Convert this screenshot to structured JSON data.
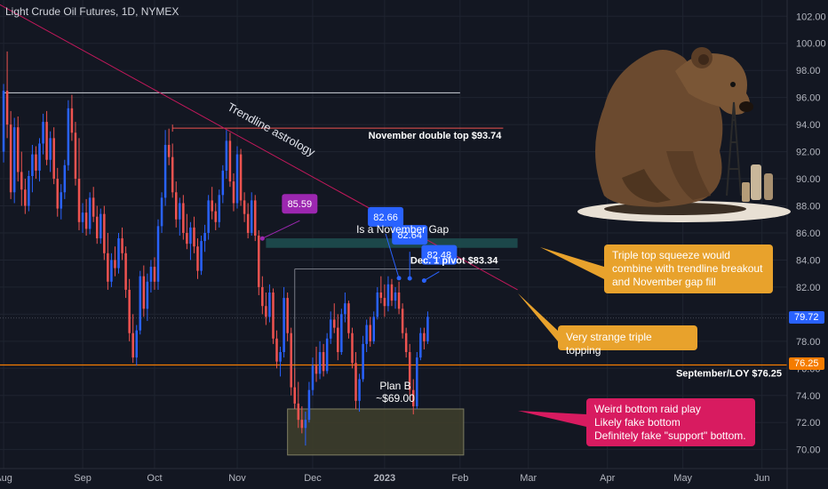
{
  "header": {
    "title": "Light Crude Oil Futures, 1D, NYMEX"
  },
  "chart_data": {
    "type": "candlestick",
    "y_axis": {
      "ticks": [
        70,
        72,
        74,
        76,
        78,
        80,
        82,
        84,
        86,
        88,
        90,
        92,
        94,
        96,
        98,
        100,
        102
      ],
      "ylim": [
        68.6,
        103.2
      ]
    },
    "x_axis": {
      "ticks": [
        {
          "label": "Aug",
          "i": 0
        },
        {
          "label": "Sep",
          "i": 22
        },
        {
          "label": "Oct",
          "i": 42
        },
        {
          "label": "Nov",
          "i": 65
        },
        {
          "label": "Dec",
          "i": 86
        },
        {
          "label": "2023",
          "i": 106
        },
        {
          "label": "Feb",
          "i": 127
        },
        {
          "label": "Mar",
          "i": 146
        },
        {
          "label": "Apr",
          "i": 168
        },
        {
          "label": "May",
          "i": 189
        },
        {
          "label": "Jun",
          "i": 211
        }
      ],
      "xlim": [
        -1,
        218
      ]
    },
    "candles": [
      {
        "o": 92.0,
        "h": 97.0,
        "l": 91.2,
        "c": 96.5
      },
      {
        "o": 96.5,
        "h": 99.4,
        "l": 93.0,
        "c": 94.0
      },
      {
        "o": 94.0,
        "h": 95.0,
        "l": 88.5,
        "c": 89.0
      },
      {
        "o": 89.0,
        "h": 94.5,
        "l": 88.2,
        "c": 93.8
      },
      {
        "o": 93.8,
        "h": 94.6,
        "l": 89.8,
        "c": 90.5
      },
      {
        "o": 90.5,
        "h": 92.0,
        "l": 88.0,
        "c": 89.2
      },
      {
        "o": 89.2,
        "h": 90.0,
        "l": 87.4,
        "c": 88.0
      },
      {
        "o": 88.0,
        "h": 90.6,
        "l": 87.6,
        "c": 90.2
      },
      {
        "o": 90.2,
        "h": 92.5,
        "l": 89.0,
        "c": 91.8
      },
      {
        "o": 91.8,
        "h": 92.4,
        "l": 90.0,
        "c": 90.6
      },
      {
        "o": 90.6,
        "h": 93.0,
        "l": 89.8,
        "c": 92.6
      },
      {
        "o": 92.6,
        "h": 94.8,
        "l": 91.8,
        "c": 94.2
      },
      {
        "o": 94.2,
        "h": 95.0,
        "l": 91.0,
        "c": 91.4
      },
      {
        "o": 91.4,
        "h": 93.5,
        "l": 90.5,
        "c": 93.0
      },
      {
        "o": 93.0,
        "h": 93.8,
        "l": 89.6,
        "c": 90.0
      },
      {
        "o": 90.0,
        "h": 90.8,
        "l": 87.2,
        "c": 87.8
      },
      {
        "o": 87.8,
        "h": 89.6,
        "l": 87.0,
        "c": 89.0
      },
      {
        "o": 89.0,
        "h": 91.4,
        "l": 88.5,
        "c": 91.0
      },
      {
        "o": 91.0,
        "h": 95.8,
        "l": 90.6,
        "c": 95.2
      },
      {
        "o": 95.2,
        "h": 96.2,
        "l": 92.8,
        "c": 93.4
      },
      {
        "o": 93.4,
        "h": 94.2,
        "l": 89.5,
        "c": 90.0
      },
      {
        "o": 90.0,
        "h": 93.0,
        "l": 86.2,
        "c": 86.8
      },
      {
        "o": 86.8,
        "h": 88.2,
        "l": 86.0,
        "c": 87.5
      },
      {
        "o": 87.5,
        "h": 88.5,
        "l": 85.8,
        "c": 86.3
      },
      {
        "o": 86.3,
        "h": 89.0,
        "l": 85.9,
        "c": 88.6
      },
      {
        "o": 88.6,
        "h": 89.4,
        "l": 86.8,
        "c": 87.2
      },
      {
        "o": 87.2,
        "h": 88.0,
        "l": 85.2,
        "c": 85.6
      },
      {
        "o": 85.6,
        "h": 87.8,
        "l": 85.2,
        "c": 87.4
      },
      {
        "o": 87.4,
        "h": 88.0,
        "l": 84.0,
        "c": 84.5
      },
      {
        "o": 84.5,
        "h": 86.0,
        "l": 81.8,
        "c": 82.4
      },
      {
        "o": 82.4,
        "h": 84.5,
        "l": 82.0,
        "c": 84.0
      },
      {
        "o": 84.0,
        "h": 85.0,
        "l": 82.8,
        "c": 83.4
      },
      {
        "o": 83.4,
        "h": 86.0,
        "l": 83.0,
        "c": 85.6
      },
      {
        "o": 85.6,
        "h": 86.4,
        "l": 84.0,
        "c": 84.5
      },
      {
        "o": 84.5,
        "h": 85.0,
        "l": 81.2,
        "c": 81.8
      },
      {
        "o": 81.8,
        "h": 82.6,
        "l": 78.0,
        "c": 78.6
      },
      {
        "o": 78.6,
        "h": 80.0,
        "l": 76.4,
        "c": 76.8
      },
      {
        "o": 76.8,
        "h": 79.2,
        "l": 76.2,
        "c": 78.8
      },
      {
        "o": 78.8,
        "h": 83.2,
        "l": 78.5,
        "c": 82.8
      },
      {
        "o": 82.8,
        "h": 83.6,
        "l": 79.8,
        "c": 80.4
      },
      {
        "o": 80.4,
        "h": 83.0,
        "l": 79.5,
        "c": 82.4
      },
      {
        "o": 82.4,
        "h": 84.0,
        "l": 81.6,
        "c": 83.5
      },
      {
        "o": 83.5,
        "h": 84.2,
        "l": 81.8,
        "c": 82.4
      },
      {
        "o": 82.4,
        "h": 87.0,
        "l": 81.8,
        "c": 86.5
      },
      {
        "o": 86.5,
        "h": 89.0,
        "l": 86.0,
        "c": 88.6
      },
      {
        "o": 88.6,
        "h": 93.6,
        "l": 88.0,
        "c": 92.5
      },
      {
        "o": 92.5,
        "h": 93.7,
        "l": 91.0,
        "c": 91.6
      },
      {
        "o": 91.6,
        "h": 92.6,
        "l": 88.6,
        "c": 89.0
      },
      {
        "o": 89.0,
        "h": 89.8,
        "l": 86.4,
        "c": 87.0
      },
      {
        "o": 87.0,
        "h": 88.6,
        "l": 85.8,
        "c": 88.2
      },
      {
        "o": 88.2,
        "h": 88.8,
        "l": 85.5,
        "c": 86.0
      },
      {
        "o": 86.0,
        "h": 87.4,
        "l": 84.8,
        "c": 85.2
      },
      {
        "o": 85.2,
        "h": 86.8,
        "l": 84.0,
        "c": 86.4
      },
      {
        "o": 86.4,
        "h": 87.2,
        "l": 84.5,
        "c": 85.0
      },
      {
        "o": 85.0,
        "h": 85.6,
        "l": 82.6,
        "c": 83.2
      },
      {
        "o": 83.2,
        "h": 85.8,
        "l": 82.9,
        "c": 85.4
      },
      {
        "o": 85.4,
        "h": 86.6,
        "l": 84.6,
        "c": 86.0
      },
      {
        "o": 86.0,
        "h": 88.8,
        "l": 85.5,
        "c": 88.4
      },
      {
        "o": 88.4,
        "h": 89.4,
        "l": 87.0,
        "c": 87.6
      },
      {
        "o": 87.6,
        "h": 88.2,
        "l": 86.2,
        "c": 86.8
      },
      {
        "o": 86.8,
        "h": 89.2,
        "l": 86.4,
        "c": 88.8
      },
      {
        "o": 88.8,
        "h": 91.0,
        "l": 88.2,
        "c": 90.6
      },
      {
        "o": 90.6,
        "h": 93.6,
        "l": 90.0,
        "c": 92.8
      },
      {
        "o": 92.8,
        "h": 93.4,
        "l": 89.4,
        "c": 89.8
      },
      {
        "o": 89.8,
        "h": 90.4,
        "l": 87.6,
        "c": 88.2
      },
      {
        "o": 88.2,
        "h": 92.4,
        "l": 87.8,
        "c": 91.8
      },
      {
        "o": 91.8,
        "h": 92.2,
        "l": 88.0,
        "c": 88.4
      },
      {
        "o": 88.4,
        "h": 89.0,
        "l": 86.8,
        "c": 87.4
      },
      {
        "o": 87.4,
        "h": 88.2,
        "l": 85.6,
        "c": 86.0
      },
      {
        "o": 86.0,
        "h": 89.0,
        "l": 85.8,
        "c": 88.4
      },
      {
        "o": 88.4,
        "h": 88.8,
        "l": 85.4,
        "c": 85.8
      },
      {
        "o": 85.8,
        "h": 86.2,
        "l": 81.4,
        "c": 82.0
      },
      {
        "o": 82.0,
        "h": 82.8,
        "l": 80.0,
        "c": 80.6
      },
      {
        "o": 80.6,
        "h": 81.6,
        "l": 79.2,
        "c": 79.8
      },
      {
        "o": 79.8,
        "h": 82.2,
        "l": 79.4,
        "c": 81.6
      },
      {
        "o": 81.6,
        "h": 81.9,
        "l": 77.8,
        "c": 78.2
      },
      {
        "o": 78.2,
        "h": 78.8,
        "l": 76.0,
        "c": 76.5
      },
      {
        "o": 76.5,
        "h": 77.6,
        "l": 75.4,
        "c": 77.2
      },
      {
        "o": 77.2,
        "h": 82.0,
        "l": 76.8,
        "c": 81.2
      },
      {
        "o": 81.2,
        "h": 81.6,
        "l": 78.0,
        "c": 78.6
      },
      {
        "o": 78.6,
        "h": 79.0,
        "l": 74.0,
        "c": 74.6
      },
      {
        "o": 74.6,
        "h": 76.0,
        "l": 73.0,
        "c": 73.4
      },
      {
        "o": 73.4,
        "h": 75.0,
        "l": 71.6,
        "c": 72.2
      },
      {
        "o": 72.2,
        "h": 73.2,
        "l": 71.2,
        "c": 71.6
      },
      {
        "o": 71.6,
        "h": 72.8,
        "l": 70.3,
        "c": 72.2
      },
      {
        "o": 72.2,
        "h": 75.0,
        "l": 72.0,
        "c": 74.4
      },
      {
        "o": 74.4,
        "h": 76.8,
        "l": 74.0,
        "c": 76.2
      },
      {
        "o": 76.2,
        "h": 77.6,
        "l": 75.0,
        "c": 75.6
      },
      {
        "o": 75.6,
        "h": 78.0,
        "l": 75.2,
        "c": 77.2
      },
      {
        "o": 77.2,
        "h": 77.8,
        "l": 75.4,
        "c": 75.8
      },
      {
        "o": 75.8,
        "h": 78.6,
        "l": 75.6,
        "c": 78.2
      },
      {
        "o": 78.2,
        "h": 80.2,
        "l": 77.8,
        "c": 79.6
      },
      {
        "o": 79.6,
        "h": 80.8,
        "l": 78.6,
        "c": 79.0
      },
      {
        "o": 79.0,
        "h": 80.0,
        "l": 76.6,
        "c": 77.2
      },
      {
        "o": 77.2,
        "h": 80.4,
        "l": 77.0,
        "c": 80.0
      },
      {
        "o": 80.0,
        "h": 81.6,
        "l": 79.4,
        "c": 80.8
      },
      {
        "o": 80.8,
        "h": 81.0,
        "l": 78.2,
        "c": 78.6
      },
      {
        "o": 78.6,
        "h": 79.0,
        "l": 76.0,
        "c": 76.4
      },
      {
        "o": 76.4,
        "h": 77.2,
        "l": 73.0,
        "c": 73.6
      },
      {
        "o": 73.6,
        "h": 75.6,
        "l": 72.8,
        "c": 75.2
      },
      {
        "o": 75.2,
        "h": 78.4,
        "l": 75.0,
        "c": 77.8
      },
      {
        "o": 77.8,
        "h": 79.6,
        "l": 77.2,
        "c": 79.2
      },
      {
        "o": 79.2,
        "h": 79.8,
        "l": 77.6,
        "c": 78.0
      },
      {
        "o": 78.0,
        "h": 80.2,
        "l": 77.8,
        "c": 79.8
      },
      {
        "o": 79.8,
        "h": 82.0,
        "l": 79.6,
        "c": 81.6
      },
      {
        "o": 81.6,
        "h": 82.8,
        "l": 80.8,
        "c": 81.2
      },
      {
        "o": 81.2,
        "h": 82.2,
        "l": 79.8,
        "c": 80.6
      },
      {
        "o": 80.6,
        "h": 82.8,
        "l": 80.2,
        "c": 82.2
      },
      {
        "o": 82.2,
        "h": 82.6,
        "l": 80.6,
        "c": 81.0
      },
      {
        "o": 81.0,
        "h": 82.0,
        "l": 80.4,
        "c": 81.6
      },
      {
        "o": 81.6,
        "h": 82.4,
        "l": 80.0,
        "c": 80.4
      },
      {
        "o": 80.4,
        "h": 80.8,
        "l": 78.2,
        "c": 78.6
      },
      {
        "o": 78.6,
        "h": 79.0,
        "l": 76.8,
        "c": 77.2
      },
      {
        "o": 77.2,
        "h": 77.8,
        "l": 74.0,
        "c": 74.4
      },
      {
        "o": 74.4,
        "h": 75.2,
        "l": 72.6,
        "c": 73.2
      },
      {
        "o": 73.2,
        "h": 77.2,
        "l": 73.0,
        "c": 76.8
      },
      {
        "o": 76.8,
        "h": 79.0,
        "l": 76.6,
        "c": 78.6
      },
      {
        "o": 78.6,
        "h": 79.0,
        "l": 77.4,
        "c": 78.0
      },
      {
        "o": 78.0,
        "h": 80.2,
        "l": 77.8,
        "c": 79.8
      }
    ],
    "horizontal_lines": [
      {
        "label": "",
        "value": 96.35,
        "color": "#d1d4dc"
      },
      {
        "label": "November double top $93.74",
        "value": 93.74,
        "color": "#ef5350"
      },
      {
        "label": "Dec. 1 pivot $83.34",
        "value": 83.34,
        "color": "#787b86"
      },
      {
        "label": "September/LOY $76.25",
        "value": 76.25,
        "color": "#f57c00"
      }
    ],
    "current_price": {
      "value": 79.72,
      "label": "79.72",
      "color": "#2962ff"
    },
    "support_price": {
      "value": 76.25,
      "label": "76.25",
      "color": "#f57c00"
    },
    "gap_zone": {
      "label": "Is a November Gap",
      "from": 84.9,
      "to": 85.6,
      "color": "#1e4d4f"
    },
    "bottom_box": {
      "label": "Plan B\n~$69.00",
      "from": 69.6,
      "to": 73.0,
      "color": "#3d3d2b"
    },
    "trendline": {
      "label": "Trendline astrology",
      "from": {
        "i": -2,
        "price": 103.0
      },
      "to": {
        "i": 143,
        "price": 81.8
      }
    },
    "markers": [
      {
        "label": "85.59",
        "color": "#9c27b0",
        "i": 72,
        "price": 85.59
      },
      {
        "label": "82.66",
        "color": "#2962ff",
        "i": 110,
        "price": 82.66
      },
      {
        "label": "82.64",
        "color": "#2962ff",
        "i": 113,
        "price": 82.64
      },
      {
        "label": "82.48",
        "color": "#2962ff",
        "i": 117,
        "price": 82.48
      }
    ],
    "annotations": {
      "triple_top": [
        "Triple top squeeze would",
        "combine with trendline breakout",
        "and November gap fill"
      ],
      "strange": [
        "Very strange triple topping"
      ],
      "weird": [
        "Weird bottom raid play",
        "Likely fake bottom",
        "Definitely fake \"support\" bottom."
      ]
    },
    "colors": {
      "up": "#2962ff",
      "down": "#ef5350",
      "background": "#131722",
      "grid": "#1f2430"
    }
  }
}
